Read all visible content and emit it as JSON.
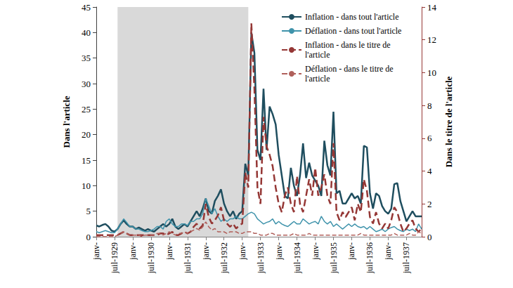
{
  "chart_data": {
    "type": "line",
    "categories": [
      "janv-",
      null,
      null,
      null,
      null,
      null,
      "juil-1929",
      null,
      null,
      null,
      null,
      null,
      "janv-",
      null,
      null,
      null,
      null,
      null,
      "juil-1930",
      null,
      null,
      null,
      null,
      null,
      "janv-",
      null,
      null,
      null,
      null,
      null,
      "juil-1931",
      null,
      null,
      null,
      null,
      null,
      "janv-",
      null,
      null,
      null,
      null,
      null,
      "juil-1932",
      null,
      null,
      null,
      null,
      null,
      "janv-",
      null,
      null,
      null,
      null,
      null,
      "juil-1933",
      null,
      null,
      null,
      null,
      null,
      "janv-",
      null,
      null,
      null,
      null,
      null,
      "juil-1934",
      null,
      null,
      null,
      null,
      null,
      "janv-",
      null,
      null,
      null,
      null,
      null,
      "juil-1935",
      null,
      null,
      null,
      null,
      null,
      "janv-",
      null,
      null,
      null,
      null,
      null,
      "juil-1936",
      null,
      null,
      null,
      null,
      null,
      "janv-",
      null,
      null,
      null,
      null,
      null,
      "juil-1937",
      null,
      null,
      null,
      null,
      null
    ],
    "ylabel": "Dans l'article",
    "y2label": "Dans le titre de l'article",
    "ylim": [
      0,
      45
    ],
    "yticks": [
      0,
      5,
      10,
      15,
      20,
      25,
      30,
      35,
      40,
      45
    ],
    "y2lim": [
      0,
      14
    ],
    "y2ticks": [
      0,
      2,
      4,
      6,
      8,
      10,
      12,
      14
    ],
    "shaded": [
      7,
      50
    ],
    "grid": false,
    "legend": "upper right",
    "series": [
      {
        "name": "Inflation - dans tout l'article",
        "color": "#1f4e5f",
        "line_style": "solid",
        "values": [
          2.2,
          2.0,
          2.3,
          2.5,
          2.0,
          1.2,
          1.0,
          1.5,
          2.5,
          3.2,
          2.5,
          2.0,
          2.0,
          1.5,
          1.8,
          1.5,
          1.2,
          1.5,
          1.2,
          1.0,
          1.5,
          2.0,
          2.5,
          2.0,
          2.5,
          3.5,
          2.0,
          1.5,
          2.0,
          2.5,
          2.0,
          3.0,
          4.0,
          5.0,
          4.0,
          5.5,
          7.5,
          5.0,
          4.5,
          7.0,
          8.0,
          9.3,
          6.5,
          5.0,
          4.0,
          5.0,
          3.5,
          4.5,
          5.0,
          14.3,
          12.0,
          40.0,
          36.0,
          17.0,
          15.0,
          29.0,
          17.0,
          25.5,
          24.0,
          22.0,
          16.0,
          12.0,
          8.0,
          7.5,
          13.5,
          10.0,
          8.0,
          12.0,
          18.3,
          11.5,
          14.5,
          12.0,
          11.0,
          10.0,
          8.0,
          18.8,
          14.0,
          12.0,
          24.5,
          8.5,
          9.0,
          6.5,
          6.5,
          7.5,
          8.5,
          7.5,
          8.0,
          6.5,
          17.8,
          17.5,
          8.5,
          5.5,
          8.5,
          8.0,
          6.0,
          5.0,
          4.5,
          5.5,
          10.3,
          10.5,
          7.0,
          5.0,
          3.0,
          4.0,
          5.0,
          4.0,
          4.0,
          4.0
        ]
      },
      {
        "name": "Déflation - dans tout l'article",
        "color": "#3f93ab",
        "line_style": "solid",
        "values": [
          1.0,
          0.8,
          1.0,
          1.2,
          1.0,
          0.8,
          0.8,
          1.5,
          2.5,
          3.5,
          2.8,
          2.0,
          2.0,
          1.5,
          1.5,
          1.2,
          1.0,
          1.0,
          1.2,
          1.5,
          2.0,
          2.0,
          1.5,
          3.0,
          3.5,
          2.5,
          2.0,
          2.0,
          2.5,
          2.5,
          2.2,
          3.0,
          3.0,
          3.5,
          3.5,
          4.5,
          7.5,
          6.0,
          4.5,
          5.5,
          4.0,
          3.0,
          3.5,
          3.0,
          3.5,
          3.5,
          4.0,
          3.5,
          3.5,
          4.0,
          4.5,
          4.8,
          4.5,
          3.5,
          3.0,
          2.5,
          2.8,
          3.0,
          3.5,
          2.5,
          3.0,
          2.5,
          2.2,
          2.0,
          2.5,
          3.0,
          2.5,
          2.5,
          3.5,
          3.0,
          2.5,
          2.8,
          3.0,
          2.5,
          4.0,
          3.0,
          2.5,
          3.0,
          2.0,
          2.5,
          2.0,
          1.5,
          2.0,
          2.5,
          2.0,
          2.5,
          2.0,
          1.8,
          2.0,
          1.5,
          2.0,
          1.5,
          1.0,
          1.2,
          1.5,
          1.0,
          1.5,
          1.8,
          2.0,
          1.5,
          1.2,
          1.0,
          1.5,
          1.2,
          1.5,
          1.0,
          2.5,
          1.5
        ]
      },
      {
        "name": "Inflation - dans le titre de l'article",
        "color": "#953735",
        "line_style": "dashed",
        "axis": "y2",
        "values": [
          0.1,
          0.1,
          0.1,
          0.1,
          0.1,
          0.1,
          0.1,
          0.1,
          0.2,
          0.3,
          0.2,
          0.1,
          0.1,
          0.1,
          0.1,
          0.1,
          0.1,
          0.1,
          0.1,
          0.1,
          0.1,
          0.2,
          0.2,
          0.1,
          0.2,
          0.3,
          0.1,
          0.1,
          0.2,
          0.3,
          0.2,
          0.3,
          0.6,
          0.8,
          0.5,
          0.7,
          2.0,
          1.2,
          0.8,
          1.0,
          1.3,
          1.8,
          1.0,
          0.8,
          0.6,
          0.8,
          0.5,
          0.7,
          0.8,
          3.9,
          3.0,
          13.0,
          9.0,
          3.0,
          2.0,
          7.3,
          5.5,
          5.0,
          4.3,
          3.0,
          2.0,
          1.5,
          2.5,
          3.0,
          2.0,
          1.5,
          3.7,
          2.0,
          1.5,
          2.5,
          3.5,
          2.5,
          4.2,
          2.5,
          3.0,
          3.8,
          2.5,
          2.0,
          5.7,
          1.5,
          1.0,
          1.5,
          1.2,
          1.5,
          1.8,
          1.0,
          2.0,
          1.5,
          3.5,
          2.8,
          1.2,
          0.8,
          1.5,
          0.8,
          0.5,
          0.8,
          0.5,
          1.0,
          1.8,
          1.5,
          0.8,
          0.3,
          0.5,
          0.8,
          1.0,
          0.5,
          0.3,
          0.5
        ]
      },
      {
        "name": "Déflation - dans le titre de l'article",
        "color": "#b0605b",
        "line_style": "dashed",
        "axis": "y2",
        "values": [
          0,
          0,
          0,
          0,
          0,
          0,
          0,
          0.1,
          0.2,
          0.3,
          0.2,
          0.1,
          0.1,
          0.1,
          0.1,
          0,
          0.1,
          0.1,
          0.1,
          0.1,
          0.2,
          0.2,
          0.1,
          0.2,
          0.3,
          0.2,
          0.1,
          0.2,
          0.2,
          0.3,
          0.2,
          0.3,
          0.4,
          0.5,
          0.4,
          0.6,
          0.9,
          0.6,
          0.4,
          0.5,
          0.3,
          0.3,
          0.3,
          0.2,
          0.3,
          0.3,
          0.3,
          0.2,
          0.2,
          0.3,
          0.3,
          0.3,
          0.2,
          0.2,
          0.1,
          0.1,
          0.1,
          0.2,
          0.2,
          0.1,
          0.1,
          0.1,
          0.1,
          0.1,
          0.1,
          0.2,
          0.1,
          0.1,
          0.1,
          0.1,
          0.2,
          0.1,
          0.1,
          0.1,
          0.1,
          0.1,
          0.1,
          0.1,
          0.1,
          0.1,
          0.1,
          0.1,
          0.1,
          0.1,
          0.1,
          0.1,
          0.1,
          0.2,
          0.1,
          0.1,
          0.1,
          0.1,
          0.1,
          0.1,
          0.1,
          0.1,
          0.1,
          0.1,
          0.2,
          0.1,
          0.1,
          0.1,
          0.1,
          0.2,
          0.1,
          0.1,
          0.3,
          0.2
        ]
      }
    ]
  }
}
